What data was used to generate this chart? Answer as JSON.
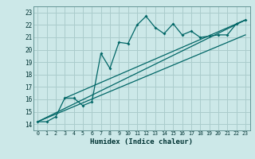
{
  "xlabel": "Humidex (Indice chaleur)",
  "bg_color": "#cce8e8",
  "grid_color": "#aacccc",
  "line_color": "#006666",
  "xlim": [
    -0.5,
    23.5
  ],
  "ylim": [
    13.5,
    23.5
  ],
  "xticks": [
    0,
    1,
    2,
    3,
    4,
    5,
    6,
    7,
    8,
    9,
    10,
    11,
    12,
    13,
    14,
    15,
    16,
    17,
    18,
    19,
    20,
    21,
    22,
    23
  ],
  "yticks": [
    14,
    15,
    16,
    17,
    18,
    19,
    20,
    21,
    22,
    23
  ],
  "series": [
    [
      0,
      14.2
    ],
    [
      1,
      14.2
    ],
    [
      2,
      14.6
    ],
    [
      3,
      16.1
    ],
    [
      4,
      16.1
    ],
    [
      5,
      15.5
    ],
    [
      6,
      15.8
    ],
    [
      7,
      19.7
    ],
    [
      8,
      18.5
    ],
    [
      9,
      20.6
    ],
    [
      10,
      20.5
    ],
    [
      11,
      22.0
    ],
    [
      12,
      22.7
    ],
    [
      13,
      21.8
    ],
    [
      14,
      21.3
    ],
    [
      15,
      22.1
    ],
    [
      16,
      21.2
    ],
    [
      17,
      21.5
    ],
    [
      18,
      21.0
    ],
    [
      19,
      21.1
    ],
    [
      20,
      21.2
    ],
    [
      21,
      21.2
    ],
    [
      22,
      22.1
    ],
    [
      23,
      22.4
    ]
  ],
  "line1": [
    [
      0,
      14.2
    ],
    [
      23,
      22.4
    ]
  ],
  "line2": [
    [
      0,
      14.2
    ],
    [
      23,
      21.2
    ]
  ],
  "line3": [
    [
      3,
      16.1
    ],
    [
      23,
      22.4
    ]
  ]
}
